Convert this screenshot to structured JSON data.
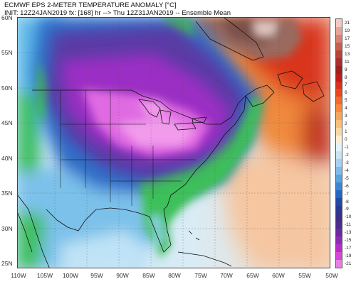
{
  "header": {
    "line1": "ECMWF EPS 2-METER TEMPERATURE ANOMALY [°C]",
    "line2": "INIT: 12Z24JAN2019 fx: [168] hr --> Thu 12Z31JAN2019 -- Ensemble Mean"
  },
  "axes": {
    "latitudes": [
      "60N",
      "55N",
      "50N",
      "45N",
      "40N",
      "35N",
      "30N",
      "25N"
    ],
    "longitudes": [
      "110W",
      "105W",
      "100W",
      "95W",
      "90W",
      "85W",
      "80W",
      "75W",
      "70W",
      "65W",
      "60W",
      "55W",
      "50W"
    ]
  },
  "colorbar": {
    "labels": [
      "21",
      "19",
      "17",
      "15",
      "13",
      "11",
      "9",
      "8",
      "7",
      "6",
      "5",
      "4",
      "3",
      "2",
      "1",
      "0",
      "-1",
      "-2",
      "-3",
      "-4",
      "-5",
      "-6",
      "-7",
      "-8",
      "-9",
      "-10",
      "-11",
      "-13",
      "-15",
      "-17",
      "-19",
      "-21"
    ],
    "colors": [
      "#f4c9c4",
      "#e8a49c",
      "#d98176",
      "#c85e4e",
      "#b8433a",
      "#a82f2d",
      "#9a2220",
      "#bb1f18",
      "#d9301f",
      "#e8461f",
      "#f06a2c",
      "#f58a3c",
      "#f7a55a",
      "#f8c07c",
      "#f9d8a6",
      "#fbeed6",
      "#e4f1f9",
      "#c9e4f5",
      "#a6d2ef",
      "#7fbbe6",
      "#5aa3dc",
      "#3a86cf",
      "#2466c0",
      "#1e4aa8",
      "#2a3893",
      "#3b2f8a",
      "#4d2c8f",
      "#6a2aa0",
      "#8e2bb5",
      "#b52fc7",
      "#d448d4",
      "#e97fe3"
    ]
  },
  "colors": {
    "cold_core": "#e06ae2",
    "cold_mid": "#9b2fc4",
    "purple": "#5a3aa6",
    "blue": "#2f72c8",
    "light_blue": "#8ec6ee",
    "green": "#3cc05a",
    "warm": "#ee7e3a",
    "hot": "#d7321e"
  }
}
